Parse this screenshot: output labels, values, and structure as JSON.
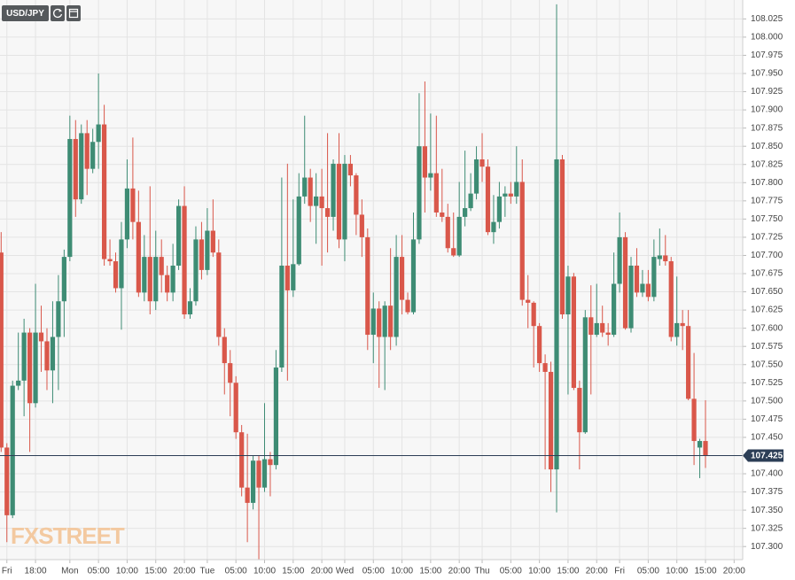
{
  "chart_data": {
    "type": "candlestick",
    "symbol": "USD/JPY",
    "watermark": "FXSTREET",
    "up_color": "#3e8c74",
    "down_color": "#d9574a",
    "grid": true,
    "current_price": 107.425,
    "current_price_label": "107.425",
    "xlim": [
      -12.2,
      117.5
    ],
    "xticks": [
      {
        "value": -11,
        "label": "Fri"
      },
      {
        "value": -6,
        "label": "18:00"
      },
      {
        "value": 0,
        "label": "Mon"
      },
      {
        "value": 5,
        "label": "05:00"
      },
      {
        "value": 10,
        "label": "10:00"
      },
      {
        "value": 15,
        "label": "15:00"
      },
      {
        "value": 20,
        "label": "20:00"
      },
      {
        "value": 24,
        "label": "Tue"
      },
      {
        "value": 29,
        "label": "05:00"
      },
      {
        "value": 34,
        "label": "10:00"
      },
      {
        "value": 39,
        "label": "15:00"
      },
      {
        "value": 44,
        "label": "20:00"
      },
      {
        "value": 48,
        "label": "Wed"
      },
      {
        "value": 53,
        "label": "05:00"
      },
      {
        "value": 58,
        "label": "10:00"
      },
      {
        "value": 63,
        "label": "15:00"
      },
      {
        "value": 68,
        "label": "20:00"
      },
      {
        "value": 72,
        "label": "Thu"
      },
      {
        "value": 77,
        "label": "05:00"
      },
      {
        "value": 82,
        "label": "10:00"
      },
      {
        "value": 87,
        "label": "15:00"
      },
      {
        "value": 92,
        "label": "20:00"
      },
      {
        "value": 96,
        "label": "Fri"
      },
      {
        "value": 101,
        "label": "05:00"
      },
      {
        "value": 106,
        "label": "10:00"
      },
      {
        "value": 111,
        "label": "15:00"
      },
      {
        "value": 116,
        "label": "20:00"
      }
    ],
    "ylim": [
      107.282,
      108.051
    ],
    "yticks": [
      {
        "value": 107.3,
        "label": "107.300"
      },
      107.325,
      {
        "value": 107.35,
        "label": "107.350"
      },
      107.375,
      {
        "value": 107.4,
        "label": "107.400"
      },
      107.425,
      {
        "value": 107.45,
        "label": "107.450"
      },
      107.475,
      {
        "value": 107.5,
        "label": "107.500"
      },
      107.525,
      {
        "value": 107.55,
        "label": "107.550"
      },
      107.575,
      {
        "value": 107.6,
        "label": "107.600"
      },
      107.625,
      {
        "value": 107.65,
        "label": "107.650"
      },
      107.675,
      {
        "value": 107.7,
        "label": "107.700"
      },
      107.725,
      {
        "value": 107.75,
        "label": "107.750"
      },
      107.775,
      {
        "value": 107.8,
        "label": "107.800"
      },
      107.825,
      {
        "value": 107.85,
        "label": "107.850"
      },
      107.875,
      {
        "value": 107.9,
        "label": "107.900"
      },
      107.925,
      {
        "value": 107.95,
        "label": "107.950"
      },
      107.975,
      {
        "value": 108.0,
        "label": "108.000"
      },
      108.025
    ],
    "x": [
      -12,
      -11,
      -10,
      -9,
      -8,
      -7,
      -6,
      -5,
      -4,
      -3,
      -2,
      -1,
      0,
      1,
      2,
      3,
      4,
      5,
      6,
      7,
      8,
      9,
      10,
      11,
      12,
      13,
      14,
      15,
      16,
      17,
      18,
      19,
      20,
      21,
      22,
      23,
      24,
      25,
      26,
      27,
      28,
      29,
      30,
      31,
      32,
      33,
      34,
      35,
      36,
      37,
      38,
      39,
      40,
      41,
      42,
      43,
      44,
      45,
      46,
      47,
      48,
      49,
      50,
      51,
      52,
      53,
      54,
      55,
      56,
      57,
      58,
      59,
      60,
      61,
      62,
      63,
      64,
      65,
      66,
      67,
      68,
      69,
      70,
      71,
      72,
      73,
      74,
      75,
      76,
      77,
      78,
      79,
      80,
      81,
      82,
      83,
      84,
      85,
      86,
      87,
      88,
      89,
      90,
      91,
      92,
      93,
      94,
      95,
      96,
      97,
      98,
      99,
      100,
      101,
      102,
      103,
      104,
      105,
      106,
      107,
      108,
      109,
      110,
      111
    ],
    "open": [
      107.704,
      107.436,
      107.343,
      107.521,
      107.528,
      107.594,
      107.497,
      107.594,
      107.582,
      107.542,
      107.588,
      107.637,
      107.698,
      107.86,
      107.777,
      107.868,
      107.819,
      107.856,
      107.88,
      107.695,
      107.692,
      107.655,
      107.722,
      107.792,
      107.746,
      107.649,
      107.698,
      107.637,
      107.698,
      107.673,
      107.649,
      107.686,
      107.768,
      107.619,
      107.637,
      107.722,
      107.68,
      107.734,
      107.704,
      107.588,
      107.552,
      107.525,
      107.457,
      107.381,
      107.36,
      107.418,
      107.381,
      107.42,
      107.412,
      107.546,
      107.686,
      107.652,
      107.688,
      107.781,
      107.807,
      107.768,
      107.781,
      107.765,
      107.753,
      107.826,
      107.722,
      107.826,
      107.81,
      107.756,
      107.725,
      107.591,
      107.627,
      107.588,
      107.631,
      107.588,
      107.698,
      107.639,
      107.622,
      107.722,
      107.85,
      107.807,
      107.813,
      107.759,
      107.753,
      107.71,
      107.7,
      107.753,
      107.765,
      107.785,
      107.832,
      107.822,
      107.732,
      107.746,
      107.781,
      107.785,
      107.781,
      107.801,
      107.639,
      107.635,
      107.603,
      107.552,
      107.54,
      107.406,
      107.832,
      107.619,
      107.671,
      107.518,
      107.457,
      107.615,
      107.591,
      107.607,
      107.594,
      107.591,
      107.661,
      107.725,
      107.6,
      107.686,
      107.649,
      107.661,
      107.643,
      107.695,
      107.7,
      107.692,
      107.588,
      107.607,
      107.603,
      107.503,
      107.436,
      107.445
    ],
    "high": [
      107.732,
      107.442,
      107.528,
      107.594,
      107.613,
      107.6,
      107.661,
      107.631,
      107.6,
      107.637,
      107.673,
      107.708,
      107.892,
      107.886,
      107.88,
      107.886,
      107.874,
      107.95,
      107.907,
      107.722,
      107.704,
      107.746,
      107.832,
      107.862,
      107.789,
      107.728,
      107.795,
      107.734,
      107.722,
      107.686,
      107.716,
      107.777,
      107.795,
      107.655,
      107.74,
      107.746,
      107.765,
      107.777,
      107.722,
      107.6,
      107.57,
      107.534,
      107.467,
      107.455,
      107.425,
      107.425,
      107.497,
      107.43,
      107.57,
      107.807,
      107.826,
      107.777,
      107.813,
      107.892,
      107.819,
      107.813,
      107.819,
      107.868,
      107.832,
      107.868,
      107.838,
      107.838,
      107.813,
      107.777,
      107.737,
      107.649,
      107.637,
      107.637,
      107.71,
      107.728,
      107.728,
      107.649,
      107.759,
      107.923,
      107.939,
      107.895,
      107.892,
      107.819,
      107.771,
      107.759,
      107.801,
      107.844,
      107.813,
      107.85,
      107.868,
      107.832,
      107.783,
      107.801,
      107.795,
      107.801,
      107.85,
      107.832,
      107.673,
      107.637,
      107.607,
      107.564,
      107.554,
      108.045,
      107.838,
      107.686,
      107.676,
      107.528,
      107.625,
      107.659,
      107.661,
      107.631,
      107.607,
      107.704,
      107.759,
      107.732,
      107.698,
      107.71,
      107.68,
      107.68,
      107.722,
      107.737,
      107.728,
      107.698,
      107.671,
      107.625,
      107.625,
      107.566,
      107.448,
      107.501
    ],
    "low": [
      107.43,
      107.306,
      107.339,
      107.515,
      107.479,
      107.43,
      107.491,
      107.54,
      107.515,
      107.497,
      107.515,
      107.588,
      107.692,
      107.753,
      107.771,
      107.783,
      107.813,
      107.819,
      107.686,
      107.686,
      107.649,
      107.598,
      107.71,
      107.722,
      107.643,
      107.637,
      107.619,
      107.625,
      107.649,
      107.637,
      107.637,
      107.68,
      107.613,
      107.613,
      107.631,
      107.667,
      107.673,
      107.698,
      107.576,
      107.509,
      107.479,
      107.448,
      107.369,
      107.306,
      107.351,
      107.282,
      107.375,
      107.369,
      107.406,
      107.54,
      107.528,
      107.643,
      107.686,
      107.771,
      107.746,
      107.716,
      107.686,
      107.704,
      107.734,
      107.71,
      107.692,
      107.795,
      107.728,
      107.698,
      107.57,
      107.552,
      107.518,
      107.515,
      107.57,
      107.576,
      107.619,
      107.619,
      107.619,
      107.716,
      107.759,
      107.789,
      107.753,
      107.746,
      107.704,
      107.698,
      107.698,
      107.74,
      107.761,
      107.777,
      107.801,
      107.728,
      107.716,
      107.737,
      107.753,
      107.771,
      107.771,
      107.631,
      107.6,
      107.546,
      107.54,
      107.406,
      107.375,
      107.347,
      107.613,
      107.509,
      107.515,
      107.406,
      107.455,
      107.509,
      107.588,
      107.588,
      107.576,
      107.588,
      107.649,
      107.598,
      107.594,
      107.643,
      107.643,
      107.637,
      107.637,
      107.686,
      107.686,
      107.582,
      107.576,
      107.57,
      107.501,
      107.412,
      107.394,
      107.408
    ],
    "close": [
      107.436,
      107.343,
      107.521,
      107.528,
      107.594,
      107.497,
      107.594,
      107.582,
      107.542,
      107.588,
      107.637,
      107.698,
      107.86,
      107.777,
      107.868,
      107.819,
      107.856,
      107.88,
      107.695,
      107.692,
      107.655,
      107.722,
      107.792,
      107.746,
      107.649,
      107.698,
      107.637,
      107.698,
      107.673,
      107.649,
      107.686,
      107.768,
      107.619,
      107.637,
      107.722,
      107.68,
      107.734,
      107.704,
      107.588,
      107.552,
      107.525,
      107.457,
      107.381,
      107.36,
      107.418,
      107.381,
      107.42,
      107.412,
      107.546,
      107.686,
      107.652,
      107.688,
      107.781,
      107.807,
      107.768,
      107.781,
      107.765,
      107.753,
      107.826,
      107.722,
      107.826,
      107.81,
      107.756,
      107.725,
      107.591,
      107.627,
      107.588,
      107.631,
      107.588,
      107.698,
      107.639,
      107.622,
      107.722,
      107.85,
      107.807,
      107.813,
      107.759,
      107.753,
      107.71,
      107.7,
      107.753,
      107.765,
      107.785,
      107.832,
      107.822,
      107.732,
      107.746,
      107.781,
      107.785,
      107.781,
      107.801,
      107.639,
      107.635,
      107.603,
      107.552,
      107.54,
      107.406,
      107.832,
      107.619,
      107.671,
      107.518,
      107.457,
      107.615,
      107.591,
      107.607,
      107.594,
      107.591,
      107.661,
      107.725,
      107.6,
      107.686,
      107.649,
      107.661,
      107.643,
      107.698,
      107.7,
      107.692,
      107.588,
      107.607,
      107.603,
      107.503,
      107.445,
      107.445,
      107.425
    ]
  }
}
